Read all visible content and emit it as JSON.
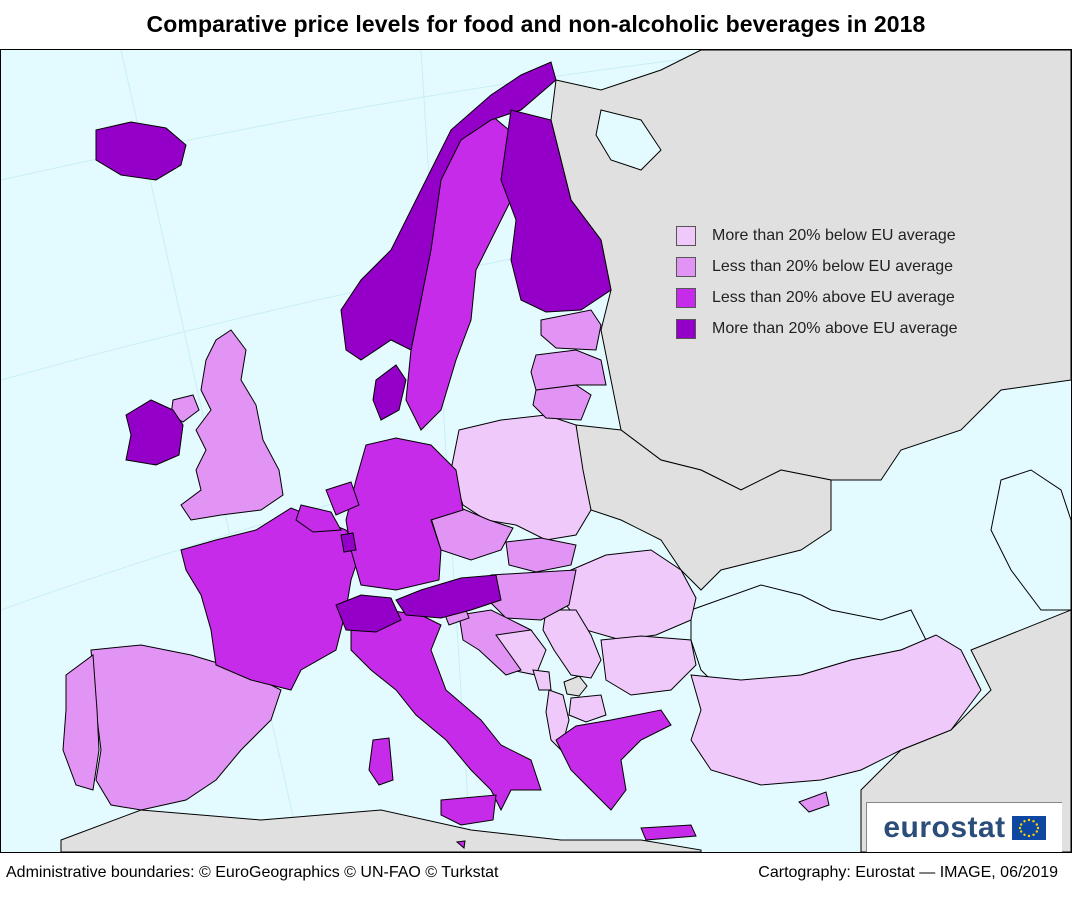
{
  "title": "Comparative price levels for food and non-alcoholic beverages in 2018",
  "colors": {
    "sea": "#e3fbff",
    "non_covered": "#e0e0e0",
    "more_than_20_below": "#f0c9fb",
    "less_than_20_below": "#e294f5",
    "less_than_20_above": "#c52be8",
    "more_than_20_above": "#9500c8",
    "border": "#000000"
  },
  "legend": [
    {
      "label": "More than 20% below EU average",
      "color": "#f0c9fb"
    },
    {
      "label": "Less than 20% below EU average",
      "color": "#e294f5"
    },
    {
      "label": "Less than 20% above EU average",
      "color": "#c52be8"
    },
    {
      "label": "More than 20% above EU average",
      "color": "#9500c8"
    }
  ],
  "logo": {
    "text": "eurostat",
    "flag_icon": "eu-flag-icon"
  },
  "footer": {
    "left": "Administrative boundaries: © EuroGeographics © UN-FAO © Turkstat",
    "right": "Cartography: Eurostat — IMAGE, 06/2019"
  }
}
